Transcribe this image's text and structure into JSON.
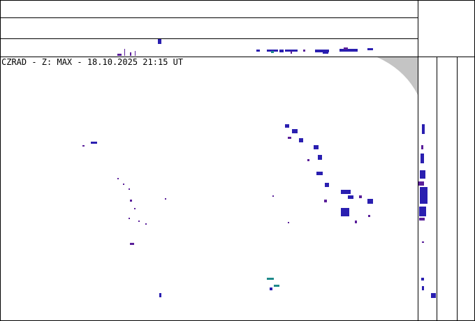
{
  "title": "CZRAD - Z: MAX - 18.10.2025 21:15 UT"
}
